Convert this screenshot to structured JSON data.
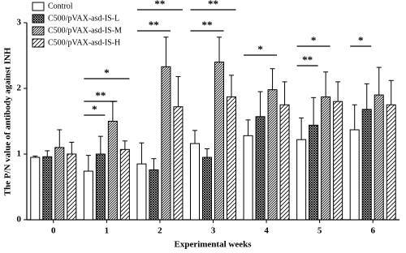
{
  "chart_data": {
    "type": "bar",
    "x_label": "Experimental weeks",
    "y_label": "The P/N value of antibody against INH",
    "categories": [
      "0",
      "1",
      "2",
      "3",
      "4",
      "5",
      "6"
    ],
    "series": [
      {
        "name": "Control",
        "color": "#000000",
        "pattern": "none",
        "values": [
          0.95,
          0.74,
          0.85,
          1.16,
          1.28,
          1.22,
          1.37
        ],
        "errors": [
          0.02,
          0.24,
          0.32,
          0.2,
          0.24,
          0.33,
          0.38
        ]
      },
      {
        "name": "C500/pVAX-asd-IS-L",
        "color": "#000000",
        "pattern": "crosshatch",
        "values": [
          0.96,
          1.0,
          0.76,
          0.95,
          1.57,
          1.44,
          1.68
        ],
        "errors": [
          0.09,
          0.27,
          0.17,
          0.13,
          0.38,
          0.42,
          0.39
        ]
      },
      {
        "name": "C500/pVAX-asd-IS-M",
        "color": "#000000",
        "pattern": "diagonal",
        "values": [
          1.1,
          1.5,
          2.33,
          2.4,
          1.98,
          1.87,
          1.9
        ],
        "errors": [
          0.27,
          0.3,
          0.45,
          0.38,
          0.32,
          0.38,
          0.42
        ]
      },
      {
        "name": "C500/pVAX-asd-IS-H",
        "color": "#000000",
        "pattern": "diagonal-sparse",
        "values": [
          1.0,
          1.07,
          1.72,
          1.87,
          1.75,
          1.8,
          1.75
        ],
        "errors": [
          0.18,
          0.13,
          0.46,
          0.33,
          0.35,
          0.3,
          0.37
        ]
      }
    ],
    "annotations": [
      "*",
      "**",
      "*",
      "**",
      "**",
      "**",
      "**",
      "*",
      "**",
      "*",
      "*"
    ],
    "ylim": [
      0,
      3
    ],
    "yticks": [
      0,
      1,
      2,
      3
    ]
  }
}
